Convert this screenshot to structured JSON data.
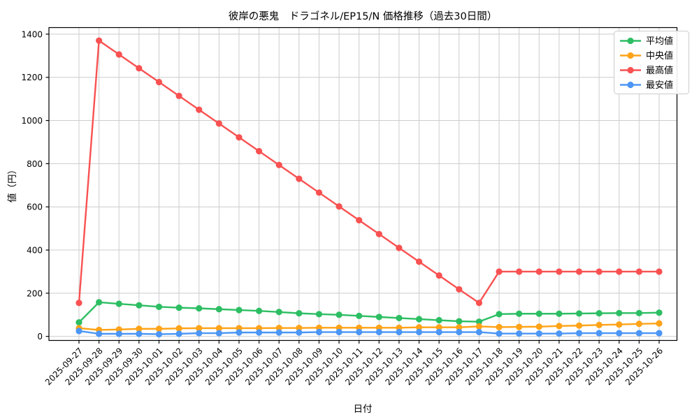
{
  "chart_data": {
    "type": "line",
    "title": "彼岸の悪鬼　ドラゴネル/EP15/N 価格推移（過去30日間）",
    "xlabel": "日付",
    "ylabel": "値（円）",
    "ylim": [
      0,
      1400
    ],
    "yticks": [
      0,
      200,
      400,
      600,
      800,
      1000,
      1200,
      1400
    ],
    "grid": true,
    "grid_color": "#cccccc",
    "axis_color": "#000000",
    "legend_position": "upper right",
    "categories": [
      "2025-09-27",
      "2025-09-28",
      "2025-09-29",
      "2025-09-30",
      "2025-10-01",
      "2025-10-02",
      "2025-10-03",
      "2025-10-04",
      "2025-10-05",
      "2025-10-06",
      "2025-10-07",
      "2025-10-08",
      "2025-10-09",
      "2025-10-10",
      "2025-10-11",
      "2025-10-12",
      "2025-10-13",
      "2025-10-14",
      "2025-10-15",
      "2025-10-16",
      "2025-10-17",
      "2025-10-18",
      "2025-10-19",
      "2025-10-20",
      "2025-10-21",
      "2025-10-22",
      "2025-10-23",
      "2025-10-24",
      "2025-10-25",
      "2025-10-26"
    ],
    "series": [
      {
        "name": "平均値",
        "color": "#2dbe63",
        "values": [
          65,
          158,
          151,
          144,
          137,
          133,
          130,
          126,
          122,
          118,
          113,
          107,
          103,
          100,
          95,
          90,
          85,
          80,
          75,
          70,
          68,
          103,
          105,
          105,
          105,
          106,
          107,
          108,
          108,
          110
        ]
      },
      {
        "name": "中央値",
        "color": "#ffa318",
        "values": [
          38,
          30,
          32,
          35,
          35,
          37,
          38,
          38,
          38,
          38,
          39,
          39,
          40,
          40,
          40,
          40,
          40,
          42,
          42,
          42,
          46,
          43,
          44,
          45,
          48,
          50,
          53,
          55,
          58,
          60
        ]
      },
      {
        "name": "最高値",
        "color": "#f95151",
        "values": [
          155,
          1370,
          1306,
          1242,
          1178,
          1114,
          1050,
          986,
          922,
          858,
          794,
          730,
          666,
          602,
          538,
          474,
          410,
          346,
          282,
          218,
          155,
          300,
          300,
          300,
          300,
          300,
          300,
          300,
          300,
          300
        ]
      },
      {
        "name": "最安値",
        "color": "#4c96f5",
        "values": [
          25,
          12,
          12,
          12,
          10,
          12,
          15,
          15,
          18,
          18,
          18,
          18,
          20,
          20,
          20,
          20,
          20,
          20,
          20,
          20,
          20,
          13,
          13,
          13,
          13,
          15,
          15,
          15,
          15,
          15
        ]
      }
    ]
  }
}
